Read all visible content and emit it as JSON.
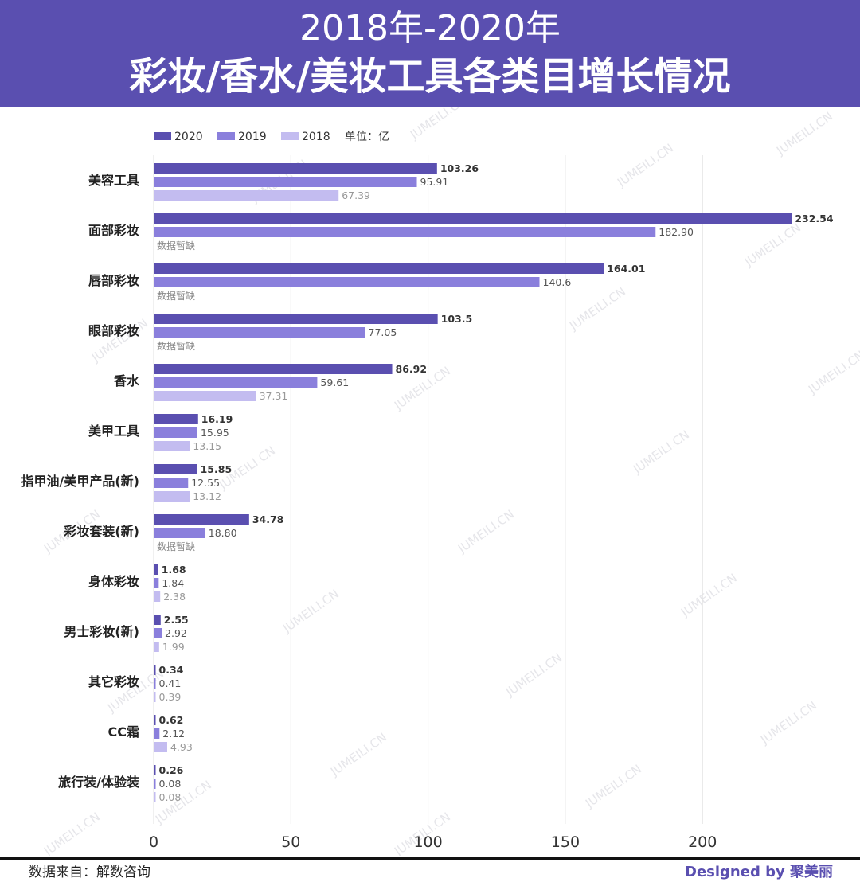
{
  "header": {
    "title_line1": "2018年-2020年",
    "title_line2": "彩妆/香水/美妆工具各类目增长情况"
  },
  "footer": {
    "source": "数据来自：解数咨询",
    "credit": "Designed by 聚美丽"
  },
  "watermark": "JUMEILI.CN",
  "colors": {
    "2020": "#5a4fb0",
    "2019": "#8a7fdc",
    "2018": "#c3bcf0",
    "header_bg": "#5a4fb0"
  },
  "chart_data": {
    "type": "bar",
    "orientation": "horizontal",
    "unit_label": "单位：亿",
    "missing_label": "数据暂缺",
    "categories": [
      "美容工具",
      "面部彩妆",
      "唇部彩妆",
      "眼部彩妆",
      "香水",
      "美甲工具",
      "指甲油/美甲产品(新)",
      "彩妆套装(新)",
      "身体彩妆",
      "男士彩妆(新)",
      "其它彩妆",
      "CC霜",
      "旅行装/体验装"
    ],
    "series": [
      {
        "name": "2020",
        "values": [
          103.26,
          232.54,
          164.01,
          103.5,
          86.92,
          16.19,
          15.85,
          34.78,
          1.68,
          2.55,
          0.34,
          0.62,
          0.26
        ],
        "labels": [
          "103.26",
          "232.54",
          "164.01",
          "103.5",
          "86.92",
          "16.19",
          "15.85",
          "34.78",
          "1.68",
          "2.55",
          "0.34",
          "0.62",
          "0.26"
        ]
      },
      {
        "name": "2019",
        "values": [
          95.91,
          182.9,
          140.6,
          77.05,
          59.61,
          15.95,
          12.55,
          18.8,
          1.84,
          2.92,
          0.41,
          2.12,
          0.08
        ],
        "labels": [
          "95.91",
          "182.90",
          "140.6",
          "77.05",
          "59.61",
          "15.95",
          "12.55",
          "18.80",
          "1.84",
          "2.92",
          "0.41",
          "2.12",
          "0.08"
        ]
      },
      {
        "name": "2018",
        "values": [
          67.39,
          null,
          null,
          null,
          37.31,
          13.15,
          13.12,
          null,
          2.38,
          1.99,
          0.39,
          4.93,
          0.08
        ],
        "labels": [
          "67.39",
          null,
          null,
          null,
          "37.31",
          "13.15",
          "13.12",
          null,
          "2.38",
          "1.99",
          "0.39",
          "4.93",
          "0.08"
        ]
      }
    ],
    "xlim": [
      0,
      235
    ],
    "xticks": [
      0,
      50,
      100,
      150,
      200
    ],
    "grid": true,
    "legend": "top-left"
  }
}
